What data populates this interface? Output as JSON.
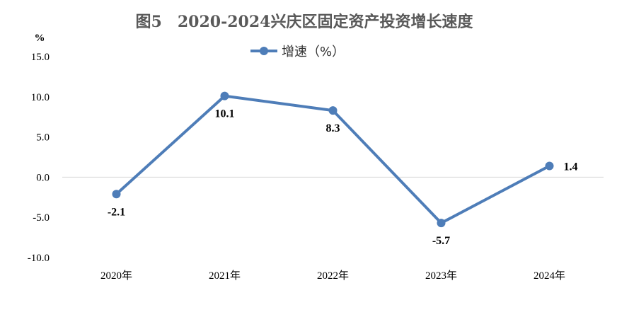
{
  "chart_data": {
    "type": "line",
    "title": "图5　2020-2024兴庆区固定资产投资增长速度",
    "ylabel": "%",
    "xlabel": "",
    "categories": [
      "2020年",
      "2021年",
      "2022年",
      "2023年",
      "2024年"
    ],
    "series": [
      {
        "name": "增速（%）",
        "values": [
          -2.1,
          10.1,
          8.3,
          -5.7,
          1.4
        ],
        "labels": [
          "-2.1",
          "10.1",
          "8.3",
          "-5.7",
          "1.4"
        ],
        "color": "#4E7DB8"
      }
    ],
    "ylim": [
      -10,
      15
    ],
    "yticks": [
      "15.0",
      "10.0",
      "5.0",
      "0.0",
      "-5.0",
      "-10.0"
    ],
    "ytick_values": [
      15,
      10,
      5,
      0,
      -5,
      -10
    ],
    "grid": false,
    "zero_line": true,
    "legend": "top-center"
  }
}
